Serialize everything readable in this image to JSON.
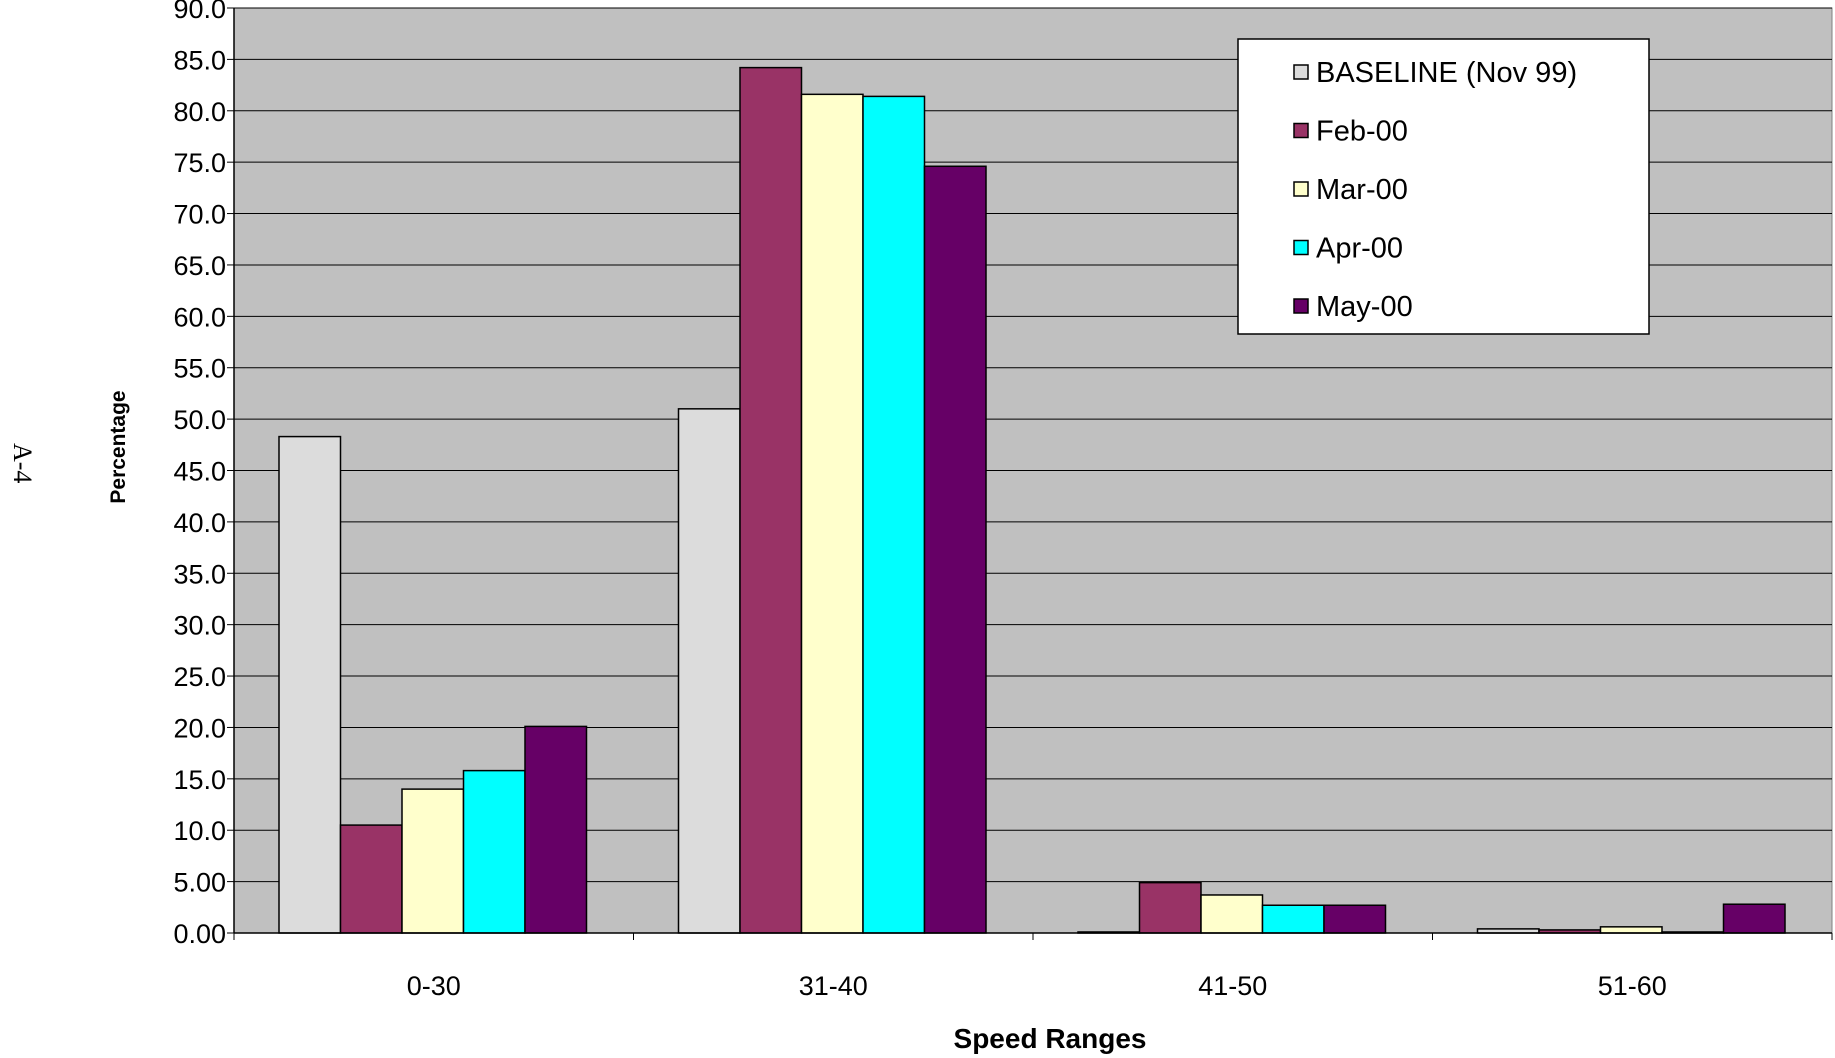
{
  "page_label": "A-4",
  "chart_data": {
    "type": "bar",
    "title": "",
    "xlabel": "Speed Ranges",
    "ylabel": "Percentage",
    "categories": [
      "0-30",
      "31-40",
      "41-50",
      "51-60"
    ],
    "yticks": [
      "0.00",
      "5.00",
      "10.0",
      "15.0",
      "20.0",
      "25.0",
      "30.0",
      "35.0",
      "40.0",
      "45.0",
      "50.0",
      "55.0",
      "60.0",
      "65.0",
      "70.0",
      "75.0",
      "80.0",
      "85.0",
      "90.0"
    ],
    "ylim": [
      0,
      90
    ],
    "grid": true,
    "legend_position": "top-right",
    "plot_background": "#c0c0c0",
    "series": [
      {
        "name": "BASELINE (Nov 99)",
        "color": "#dcdcdc",
        "values": [
          48.3,
          51.0,
          0.1,
          0.4
        ]
      },
      {
        "name": "Feb-00",
        "color": "#993366",
        "values": [
          10.5,
          84.2,
          4.9,
          0.3
        ]
      },
      {
        "name": "Mar-00",
        "color": "#ffffcc",
        "values": [
          14.0,
          81.6,
          3.7,
          0.6
        ]
      },
      {
        "name": "Apr-00",
        "color": "#00ffff",
        "values": [
          15.8,
          81.4,
          2.7,
          0.1
        ]
      },
      {
        "name": "May-00",
        "color": "#660066",
        "values": [
          20.1,
          74.6,
          2.7,
          2.8
        ]
      }
    ]
  }
}
